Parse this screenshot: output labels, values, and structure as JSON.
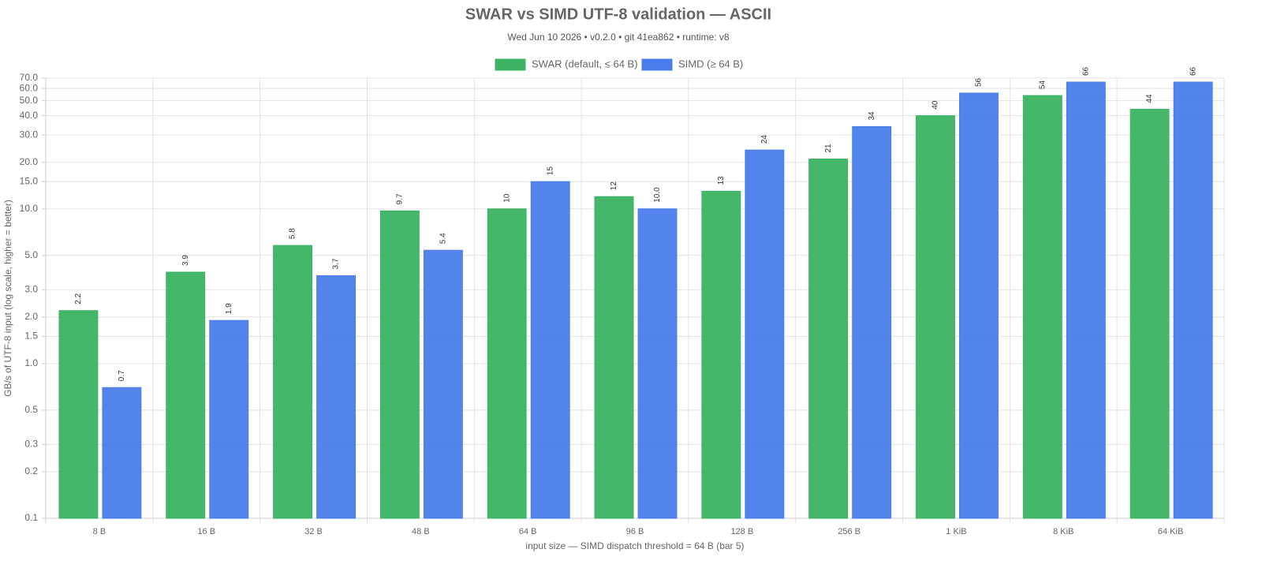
{
  "chart_data": {
    "type": "bar",
    "title": "SWAR vs SIMD UTF-8 validation — ASCII",
    "subtitle": "Wed Jun 10 2026 • v0.2.0 • git 41ea862 • runtime: v8",
    "x_label": "input size — SIMD dispatch threshold = 64 B (bar 5)",
    "y_label": "GB/s of UTF-8 input (log scale, higher = better)",
    "categories": [
      "8 B",
      "16 B",
      "32 B",
      "48 B",
      "64 B",
      "96 B",
      "128 B",
      "256 B",
      "1 KiB",
      "8 KiB",
      "64 KiB"
    ],
    "series": [
      {
        "name": "SWAR (default, ≤ 64 B)",
        "color": "#3bb363",
        "values": [
          2.2,
          3.9,
          5.8,
          9.7,
          10,
          12,
          13,
          21,
          40,
          54,
          44
        ]
      },
      {
        "name": "SIMD (≥ 64 B)",
        "color": "#4a7deb",
        "values": [
          0.7,
          1.9,
          3.7,
          5.4,
          15,
          10,
          24,
          34,
          56,
          66,
          66
        ],
        "value_labels": [
          "0.7",
          "1.9",
          "3.7",
          "5.4",
          "15",
          "10.0",
          "24",
          "34",
          "56",
          "66",
          "66"
        ]
      }
    ],
    "log_scale": true,
    "ylim": [
      0.1,
      70
    ],
    "yticks": [
      0.1,
      0.2,
      0.3,
      0.5,
      {
        "value": 1,
        "label": "1.0"
      },
      1.5,
      {
        "value": 2,
        "label": "2.0"
      },
      {
        "value": 3,
        "label": "3.0"
      },
      {
        "value": 5,
        "label": "5.0"
      },
      {
        "value": 10,
        "label": "10.0"
      },
      {
        "value": 15,
        "label": "15.0"
      },
      {
        "value": 20,
        "label": "20.0"
      },
      {
        "value": 30,
        "label": "30.0"
      },
      {
        "value": 40,
        "label": "40.0"
      },
      {
        "value": 50,
        "label": "50.0"
      },
      {
        "value": 60,
        "label": "60.0"
      },
      {
        "value": 70,
        "label": "70.0"
      }
    ],
    "grid": true,
    "legend": "top"
  }
}
